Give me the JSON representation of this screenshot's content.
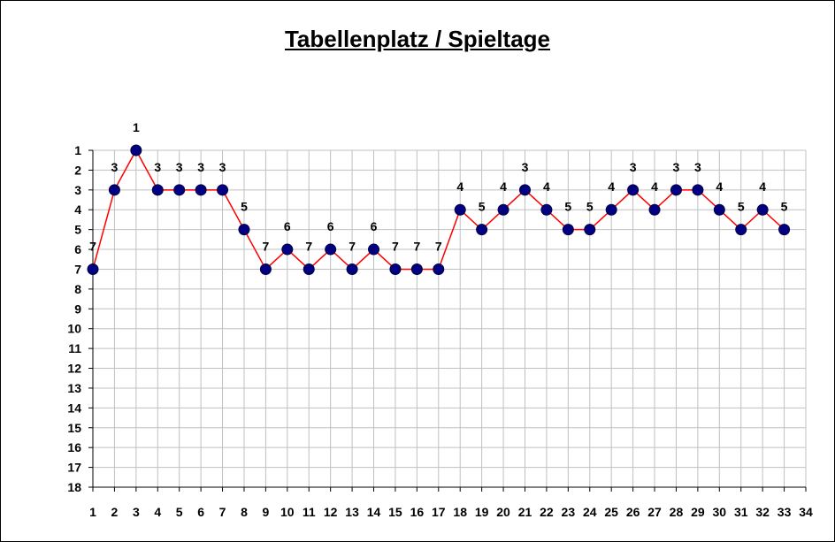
{
  "chart_data": {
    "type": "line",
    "title": "Tabellenplatz / Spieltage",
    "xlabel": "",
    "ylabel": "",
    "x_ticks": [
      1,
      2,
      3,
      4,
      5,
      6,
      7,
      8,
      9,
      10,
      11,
      12,
      13,
      14,
      15,
      16,
      17,
      18,
      19,
      20,
      21,
      22,
      23,
      24,
      25,
      26,
      27,
      28,
      29,
      30,
      31,
      32,
      33,
      34
    ],
    "y_ticks": [
      1,
      2,
      3,
      4,
      5,
      6,
      7,
      8,
      9,
      10,
      11,
      12,
      13,
      14,
      15,
      16,
      17,
      18
    ],
    "xlim": [
      1,
      34
    ],
    "ylim": [
      1,
      18
    ],
    "y_inverted": true,
    "grid": true,
    "series": [
      {
        "x": [
          1,
          2,
          3,
          4,
          5,
          6,
          7,
          8,
          9,
          10,
          11,
          12,
          13,
          14,
          15,
          16,
          17,
          18,
          19,
          20,
          21,
          22,
          23,
          24,
          25,
          26,
          27,
          28,
          29,
          30,
          31,
          32,
          33
        ],
        "values": [
          7,
          3,
          1,
          3,
          3,
          3,
          3,
          5,
          7,
          6,
          7,
          6,
          7,
          6,
          7,
          7,
          7,
          4,
          5,
          4,
          3,
          4,
          5,
          5,
          4,
          3,
          4,
          3,
          3,
          4,
          5,
          4,
          5
        ],
        "line_color": "#ff0000",
        "marker_color": "#000080"
      }
    ],
    "data_labels": true
  }
}
